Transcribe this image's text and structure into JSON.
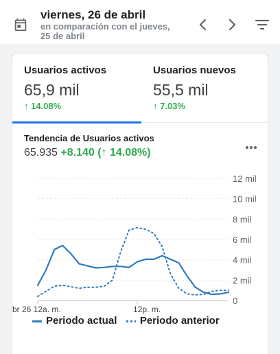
{
  "header": {
    "date": "viernes, 26 de abril",
    "comparison_line1": "en comparación con el jueves,",
    "comparison_line2": "25 de abril"
  },
  "icons": {
    "calendar": "calendar-icon",
    "prev": "chevron-left-icon",
    "next": "chevron-right-icon",
    "filter": "filter-icon",
    "more": "more-horizontal-icon"
  },
  "tabs": [
    {
      "label": "Usuarios activos",
      "value": "65,9 mil",
      "change": "↑ 14.08%",
      "selected": true
    },
    {
      "label": "Usuarios nuevos",
      "value": "55,5 mil",
      "change": "↑ 7.03%",
      "selected": false
    }
  ],
  "trend": {
    "title": "Tendencia de Usuarios activos",
    "total": "65.935",
    "delta": "+8.140 (↑ 14.08%)"
  },
  "colors": {
    "accent": "#1a73e8",
    "positive": "#34a853",
    "series": "#2f7bbf"
  },
  "chart_data": {
    "type": "line",
    "y_ticks": [
      "0",
      "2 mil",
      "4 mil",
      "6 mil",
      "8 mil",
      "10 mil",
      "12 mil"
    ],
    "x_tick_labels": [
      "br 26 12a. m.",
      "12p. m."
    ],
    "x_ticks_hours": [
      0,
      12
    ],
    "ylim": [
      0,
      12000
    ],
    "grid": true,
    "legend_position": "bottom",
    "x_hours": [
      0,
      1,
      2,
      3,
      4,
      5,
      6,
      7,
      8,
      9,
      10,
      11,
      12,
      13,
      14,
      15,
      16,
      17,
      18,
      19,
      20,
      21,
      22,
      23
    ],
    "series": [
      {
        "name": "Periodo actual",
        "style": "solid",
        "values": [
          1500,
          3000,
          5000,
          5400,
          4600,
          3600,
          3400,
          3200,
          3250,
          3350,
          3350,
          3250,
          3800,
          4050,
          4050,
          4400,
          4050,
          3700,
          2400,
          1300,
          800,
          600,
          650,
          800
        ]
      },
      {
        "name": "Periodo anterior",
        "style": "dotted",
        "values": [
          400,
          900,
          1400,
          1500,
          1350,
          1200,
          1300,
          1300,
          1400,
          2000,
          4800,
          6900,
          7150,
          7000,
          6600,
          5300,
          2600,
          1200,
          650,
          550,
          600,
          900,
          1000,
          1000
        ]
      }
    ]
  }
}
